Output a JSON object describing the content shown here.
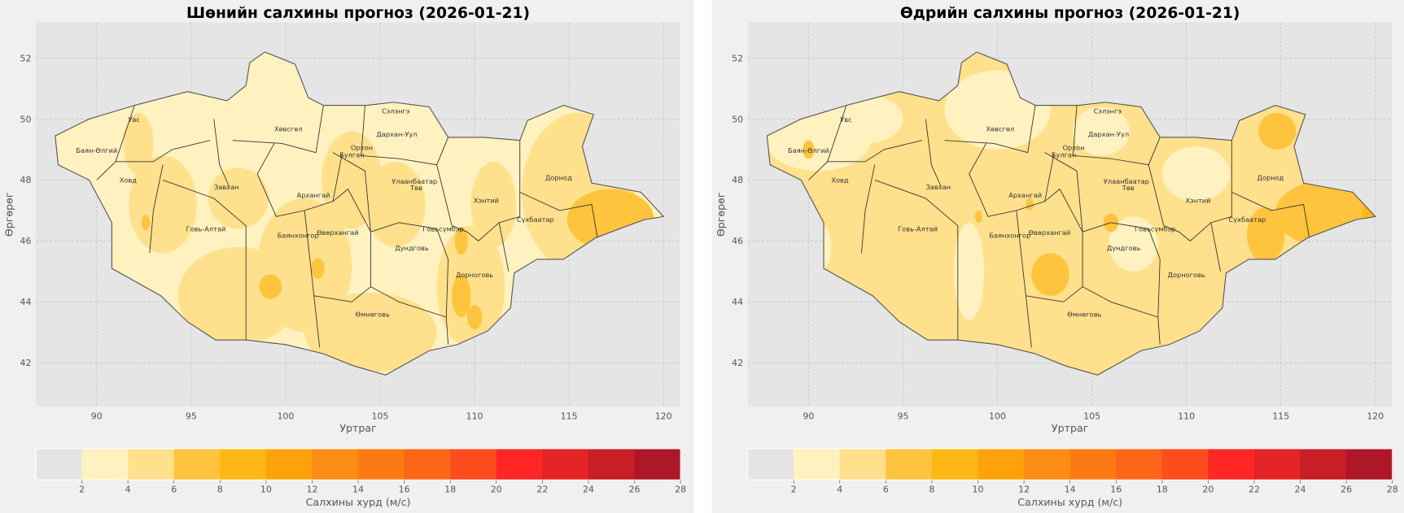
{
  "chart_data": [
    {
      "type": "heatmap",
      "title": "Шөнийн салхины прогноз (2026-01-21)",
      "xlabel": "Уртраг",
      "ylabel": "Өргөрөг",
      "xlim": [
        86.8,
        120.9
      ],
      "ylim": [
        40.6,
        53.2
      ],
      "xticks": [
        "90",
        "95",
        "100",
        "105",
        "110",
        "115",
        "120"
      ],
      "yticks": [
        "42",
        "44",
        "46",
        "48",
        "50",
        "52"
      ],
      "grid": true,
      "base_level": 2,
      "zones": [
        {
          "lon": 93.5,
          "lat": 47.2,
          "rx": 1.8,
          "ry": 1.6,
          "level": 4
        },
        {
          "lon": 92.2,
          "lat": 49.2,
          "rx": 0.8,
          "ry": 1.0,
          "level": 4
        },
        {
          "lon": 97.5,
          "lat": 47.4,
          "rx": 1.6,
          "ry": 1.0,
          "level": 4
        },
        {
          "lon": 97.5,
          "lat": 44.2,
          "rx": 3.2,
          "ry": 1.6,
          "level": 4
        },
        {
          "lon": 101.0,
          "lat": 45.2,
          "rx": 2.5,
          "ry": 2.2,
          "level": 4
        },
        {
          "lon": 103.5,
          "lat": 48.0,
          "rx": 1.6,
          "ry": 1.6,
          "level": 4
        },
        {
          "lon": 105.8,
          "lat": 47.2,
          "rx": 1.6,
          "ry": 1.4,
          "level": 4
        },
        {
          "lon": 104.5,
          "lat": 43.0,
          "rx": 3.5,
          "ry": 1.3,
          "level": 4
        },
        {
          "lon": 109.8,
          "lat": 44.5,
          "rx": 1.8,
          "ry": 2.0,
          "level": 4
        },
        {
          "lon": 111.0,
          "lat": 47.2,
          "rx": 1.2,
          "ry": 1.4,
          "level": 4
        },
        {
          "lon": 115.5,
          "lat": 47.6,
          "rx": 3.0,
          "ry": 2.6,
          "level": 4
        },
        {
          "lon": 117.2,
          "lat": 46.7,
          "rx": 2.3,
          "ry": 1.0,
          "level": 6
        },
        {
          "lon": 99.2,
          "lat": 44.5,
          "rx": 0.6,
          "ry": 0.4,
          "level": 6
        },
        {
          "lon": 109.3,
          "lat": 44.2,
          "rx": 0.5,
          "ry": 0.7,
          "level": 6
        },
        {
          "lon": 110.0,
          "lat": 43.5,
          "rx": 0.4,
          "ry": 0.4,
          "level": 6
        },
        {
          "lon": 109.3,
          "lat": 46.0,
          "rx": 0.35,
          "ry": 0.45,
          "level": 6
        },
        {
          "lon": 92.6,
          "lat": 46.6,
          "rx": 0.22,
          "ry": 0.25,
          "level": 6
        },
        {
          "lon": 101.7,
          "lat": 45.1,
          "rx": 0.35,
          "ry": 0.35,
          "level": 6
        }
      ]
    },
    {
      "type": "heatmap",
      "title": "Өдрийн салхины прогноз (2026-01-21)",
      "xlabel": "Уртраг",
      "ylabel": "Өргөрөг",
      "xlim": [
        86.8,
        120.9
      ],
      "ylim": [
        40.6,
        53.2
      ],
      "xticks": [
        "90",
        "95",
        "100",
        "105",
        "110",
        "115",
        "120"
      ],
      "yticks": [
        "42",
        "44",
        "46",
        "48",
        "50",
        "52"
      ],
      "grid": true,
      "base_level": 4,
      "zones": [
        {
          "lon": 90.5,
          "lat": 49.3,
          "rx": 2.8,
          "ry": 1.0,
          "level": 2
        },
        {
          "lon": 93.0,
          "lat": 50.0,
          "rx": 2.0,
          "ry": 0.8,
          "level": 2
        },
        {
          "lon": 100.0,
          "lat": 50.3,
          "rx": 2.8,
          "ry": 1.3,
          "level": 2
        },
        {
          "lon": 105.5,
          "lat": 49.6,
          "rx": 1.5,
          "ry": 0.8,
          "level": 2
        },
        {
          "lon": 110.5,
          "lat": 48.2,
          "rx": 1.8,
          "ry": 0.9,
          "level": 2
        },
        {
          "lon": 107.2,
          "lat": 45.9,
          "rx": 1.3,
          "ry": 0.9,
          "level": 2
        },
        {
          "lon": 98.5,
          "lat": 45.0,
          "rx": 0.8,
          "ry": 1.6,
          "level": 2
        },
        {
          "lon": 90.8,
          "lat": 45.8,
          "rx": 0.4,
          "ry": 0.7,
          "level": 2
        },
        {
          "lon": 117.5,
          "lat": 46.9,
          "rx": 2.8,
          "ry": 1.1,
          "level": 6
        },
        {
          "lon": 114.2,
          "lat": 46.2,
          "rx": 1.0,
          "ry": 0.9,
          "level": 6
        },
        {
          "lon": 114.8,
          "lat": 49.6,
          "rx": 1.0,
          "ry": 0.6,
          "level": 6
        },
        {
          "lon": 102.8,
          "lat": 44.9,
          "rx": 1.0,
          "ry": 0.7,
          "level": 6
        },
        {
          "lon": 106.0,
          "lat": 46.6,
          "rx": 0.4,
          "ry": 0.3,
          "level": 6
        },
        {
          "lon": 101.7,
          "lat": 47.2,
          "rx": 0.2,
          "ry": 0.2,
          "level": 6
        },
        {
          "lon": 99.0,
          "lat": 46.8,
          "rx": 0.2,
          "ry": 0.2,
          "level": 6
        },
        {
          "lon": 90.0,
          "lat": 49.0,
          "rx": 0.3,
          "ry": 0.3,
          "level": 6
        },
        {
          "lon": 119.8,
          "lat": 46.9,
          "rx": 0.5,
          "ry": 0.4,
          "level": 8
        }
      ]
    }
  ],
  "provinces": [
    {
      "name": "Увс",
      "lon": 91.98,
      "lat": 49.99
    },
    {
      "name": "Баян-Өлгий",
      "lon": 90.0,
      "lat": 48.98
    },
    {
      "name": "Ховд",
      "lon": 91.66,
      "lat": 48.0
    },
    {
      "name": "Завхан",
      "lon": 96.87,
      "lat": 47.78
    },
    {
      "name": "Хөвсгөл",
      "lon": 100.14,
      "lat": 49.68
    },
    {
      "name": "Архангай",
      "lon": 101.47,
      "lat": 47.51
    },
    {
      "name": "Булган",
      "lon": 103.51,
      "lat": 48.83
    },
    {
      "name": "Орхон",
      "lon": 104.03,
      "lat": 49.07
    },
    {
      "name": "Сэлэнгэ",
      "lon": 105.83,
      "lat": 50.27
    },
    {
      "name": "Дархан-Уул",
      "lon": 105.88,
      "lat": 49.51
    },
    {
      "name": "Улаанбаатар",
      "lon": 106.82,
      "lat": 47.96
    },
    {
      "name": "Төв",
      "lon": 106.92,
      "lat": 47.75
    },
    {
      "name": "Хэнтий",
      "lon": 110.62,
      "lat": 47.34
    },
    {
      "name": "Дорнод",
      "lon": 114.45,
      "lat": 48.09
    },
    {
      "name": "Сүхбаатар",
      "lon": 113.22,
      "lat": 46.71
    },
    {
      "name": "Говь-Алтай",
      "lon": 95.78,
      "lat": 46.4
    },
    {
      "name": "Баянхонгор",
      "lon": 100.66,
      "lat": 46.19
    },
    {
      "name": "Өвөрхангай",
      "lon": 102.75,
      "lat": 46.28
    },
    {
      "name": "Дундговь",
      "lon": 106.68,
      "lat": 45.78
    },
    {
      "name": "Говьсүмбэр",
      "lon": 108.34,
      "lat": 46.4
    },
    {
      "name": "Дорноговь",
      "lon": 110.0,
      "lat": 44.9
    },
    {
      "name": "Өмнөговь",
      "lon": 104.6,
      "lat": 43.61
    }
  ],
  "colorbar": {
    "label": "Салхины хурд (м/с)",
    "levels": [
      0,
      2,
      4,
      6,
      8,
      10,
      12,
      14,
      16,
      18,
      20,
      22,
      24,
      26,
      28
    ],
    "tick_labels": [
      "2",
      "4",
      "6",
      "8",
      "10",
      "12",
      "14",
      "16",
      "18",
      "20",
      "22",
      "24",
      "26",
      "28"
    ],
    "colors": [
      "#e5e5e5",
      "#fff2c0",
      "#ffe08c",
      "#fec43e",
      "#feb714",
      "#fea20b",
      "#fd8c15",
      "#fd7a12",
      "#fd6518",
      "#fd4c1d",
      "#ff2626",
      "#e32325",
      "#c81e26",
      "#ad1727"
    ]
  }
}
